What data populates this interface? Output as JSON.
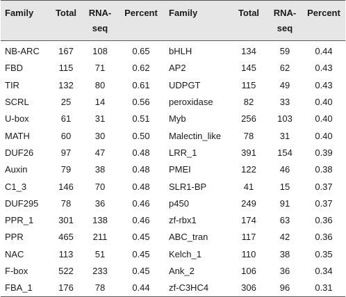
{
  "headers": {
    "family1": "Family",
    "total1": "Total",
    "rnaseq1": "RNA-\nseq",
    "percent1": "Percent",
    "family2": "Family",
    "total2": "Total",
    "rnaseq2": "RNA-\nseq",
    "percent2": "Percent"
  },
  "rows": [
    [
      "NB-ARC",
      "167",
      "108",
      "0.65",
      "bHLH",
      "134",
      "59",
      "0.44"
    ],
    [
      "FBD",
      "115",
      "71",
      "0.62",
      "AP2",
      "145",
      "62",
      "0.43"
    ],
    [
      "TIR",
      "132",
      "80",
      "0.61",
      "UDPGT",
      "115",
      "49",
      "0.43"
    ],
    [
      "SCRL",
      "25",
      "14",
      "0.56",
      "peroxidase",
      "82",
      "33",
      "0.40"
    ],
    [
      "U-box",
      "61",
      "31",
      "0.51",
      "Myb",
      "256",
      "103",
      "0.40"
    ],
    [
      "MATH",
      "60",
      "30",
      "0.50",
      "Malectin_like",
      "78",
      "31",
      "0.40"
    ],
    [
      "DUF26",
      "97",
      "47",
      "0.48",
      "LRR_1",
      "391",
      "154",
      "0.39"
    ],
    [
      "Auxin",
      "79",
      "38",
      "0.48",
      "PMEI",
      "122",
      "46",
      "0.38"
    ],
    [
      "C1_3",
      "146",
      "70",
      "0.48",
      "SLR1-BP",
      "41",
      "15",
      "0.37"
    ],
    [
      "DUF295",
      "78",
      "36",
      "0.46",
      "p450",
      "249",
      "91",
      "0.37"
    ],
    [
      "PPR_1",
      "301",
      "138",
      "0.46",
      "zf-rbx1",
      "174",
      "63",
      "0.36"
    ],
    [
      "PPR",
      "465",
      "211",
      "0.45",
      "ABC_tran",
      "117",
      "42",
      "0.36"
    ],
    [
      "NAC",
      "113",
      "51",
      "0.45",
      "Kelch_1",
      "110",
      "38",
      "0.35"
    ],
    [
      "F-box",
      "522",
      "233",
      "0.45",
      "Ank_2",
      "106",
      "36",
      "0.34"
    ],
    [
      "FBA_1",
      "176",
      "78",
      "0.44",
      "zf-C3HC4",
      "306",
      "96",
      "0.31"
    ]
  ]
}
